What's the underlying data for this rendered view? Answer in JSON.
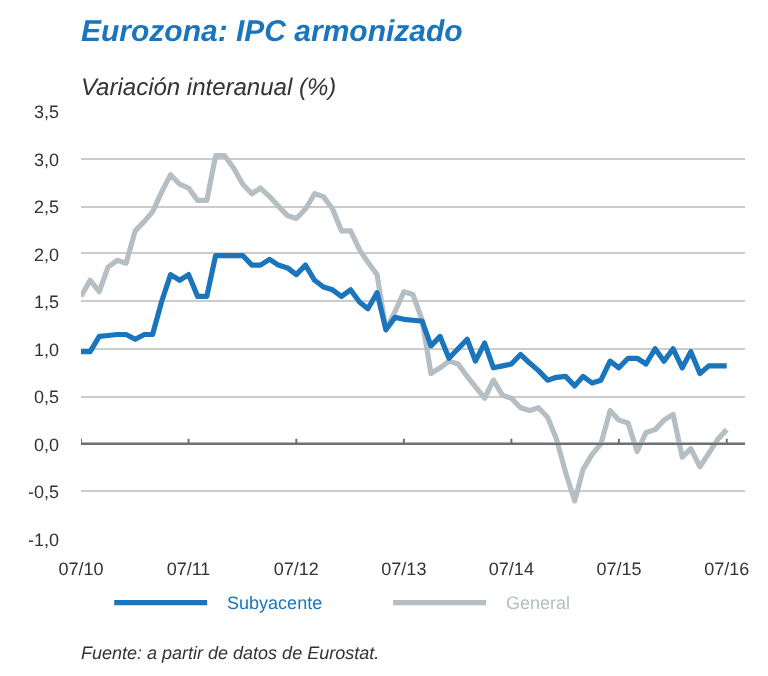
{
  "chart_data": {
    "type": "line",
    "title": "Eurozona: IPC armonizado",
    "subtitle": "Variación interanual (%)",
    "x": [
      "2010-07",
      "2010-08",
      "2010-09",
      "2010-10",
      "2010-11",
      "2010-12",
      "2011-01",
      "2011-02",
      "2011-03",
      "2011-04",
      "2011-05",
      "2011-06",
      "2011-07",
      "2011-08",
      "2011-09",
      "2011-10",
      "2011-11",
      "2011-12",
      "2012-01",
      "2012-02",
      "2012-03",
      "2012-04",
      "2012-05",
      "2012-06",
      "2012-07",
      "2012-08",
      "2012-09",
      "2012-10",
      "2012-11",
      "2012-12",
      "2013-01",
      "2013-02",
      "2013-03",
      "2013-04",
      "2013-05",
      "2013-06",
      "2013-07",
      "2013-08",
      "2013-09",
      "2013-10",
      "2013-11",
      "2013-12",
      "2014-01",
      "2014-02",
      "2014-03",
      "2014-04",
      "2014-05",
      "2014-06",
      "2014-07",
      "2014-08",
      "2014-09",
      "2014-10",
      "2014-11",
      "2014-12",
      "2015-01",
      "2015-02",
      "2015-03",
      "2015-04",
      "2015-05",
      "2015-06",
      "2015-07",
      "2015-08",
      "2015-09",
      "2015-10",
      "2015-11",
      "2015-12",
      "2016-01",
      "2016-02",
      "2016-03",
      "2016-04",
      "2016-05",
      "2016-06",
      "2016-07"
    ],
    "series": [
      {
        "name": "Subyacente",
        "color": "#1a75bc",
        "values": [
          0.97,
          0.97,
          1.13,
          1.14,
          1.15,
          1.15,
          1.1,
          1.15,
          1.15,
          1.5,
          1.78,
          1.72,
          1.78,
          1.55,
          1.55,
          1.98,
          1.98,
          1.98,
          1.98,
          1.88,
          1.88,
          1.94,
          1.88,
          1.85,
          1.78,
          1.88,
          1.72,
          1.65,
          1.62,
          1.55,
          1.62,
          1.49,
          1.42,
          1.59,
          1.2,
          1.33,
          1.31,
          1.3,
          1.29,
          1.03,
          1.13,
          0.9,
          1.0,
          1.1,
          0.87,
          1.06,
          0.8,
          0.82,
          0.84,
          0.94,
          0.85,
          0.77,
          0.67,
          0.7,
          0.71,
          0.61,
          0.71,
          0.64,
          0.67,
          0.87,
          0.8,
          0.9,
          0.9,
          0.84,
          1.0,
          0.87,
          1.0,
          0.8,
          0.97,
          0.74,
          0.82,
          0.82,
          0.82
        ]
      },
      {
        "name": "General",
        "color": "#b4bec3",
        "values": [
          1.55,
          1.72,
          1.6,
          1.86,
          1.93,
          1.9,
          2.24,
          2.34,
          2.44,
          2.65,
          2.83,
          2.73,
          2.69,
          2.56,
          2.56,
          3.03,
          3.03,
          2.9,
          2.73,
          2.63,
          2.69,
          2.6,
          2.5,
          2.4,
          2.37,
          2.47,
          2.63,
          2.6,
          2.47,
          2.24,
          2.24,
          2.04,
          1.91,
          1.78,
          1.2,
          1.39,
          1.6,
          1.57,
          1.3,
          0.74,
          0.8,
          0.87,
          0.84,
          0.71,
          0.6,
          0.48,
          0.67,
          0.51,
          0.48,
          0.38,
          0.35,
          0.38,
          0.28,
          0.05,
          -0.3,
          -0.6,
          -0.27,
          -0.11,
          0.0,
          0.35,
          0.25,
          0.22,
          -0.08,
          0.12,
          0.15,
          0.25,
          0.31,
          -0.14,
          -0.05,
          -0.24,
          -0.1,
          0.05,
          0.15
        ]
      }
    ],
    "xlim": [
      "2010-07",
      "2016-09"
    ],
    "xticks": [
      {
        "value": "2010-07",
        "label": "07/10"
      },
      {
        "value": "2011-07",
        "label": "07/11"
      },
      {
        "value": "2012-07",
        "label": "07/12"
      },
      {
        "value": "2013-07",
        "label": "07/13"
      },
      {
        "value": "2014-07",
        "label": "07/14"
      },
      {
        "value": "2015-07",
        "label": "07/15"
      },
      {
        "value": "2016-07",
        "label": "07/16"
      }
    ],
    "ylim": [
      -1.0,
      3.5
    ],
    "yticks": [
      {
        "value": -1.0,
        "label": "-1,0"
      },
      {
        "value": -0.5,
        "label": "-0,5"
      },
      {
        "value": 0,
        "label": "0,0"
      },
      {
        "value": 0.5,
        "label": "0,5"
      },
      {
        "value": 1.0,
        "label": "1,0"
      },
      {
        "value": 1.5,
        "label": "1,5"
      },
      {
        "value": 2.0,
        "label": "2,0"
      },
      {
        "value": 2.5,
        "label": "2,5"
      },
      {
        "value": 3.0,
        "label": "3,0"
      },
      {
        "value": 3.5,
        "label": "3,5"
      }
    ],
    "ref_lines": [
      {
        "axis": "y",
        "value": 0,
        "color": "#707070"
      }
    ],
    "grid": "y",
    "legend": "bottom",
    "marker": "none",
    "line_style": "solid",
    "annotations": [
      "Fuente: a partir de datos de Eurostat."
    ]
  }
}
